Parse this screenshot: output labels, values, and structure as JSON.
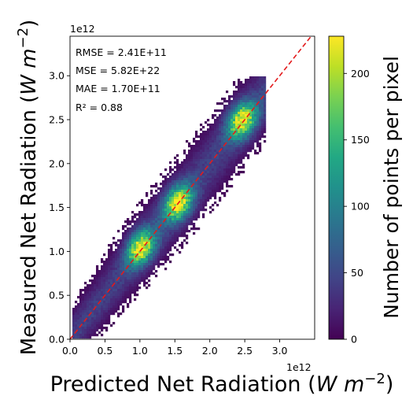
{
  "chart_data": {
    "type": "heatmap",
    "title": "",
    "xlabel": "Predicted Net Radiation",
    "ylabel": "Measured Net Radiation",
    "unit": "W m^-2",
    "x_offset_label": "1e12",
    "y_offset_label": "1e12",
    "xlim": [
      0.0,
      3.5
    ],
    "ylim": [
      0.0,
      3.45
    ],
    "x_ticks": [
      0.0,
      0.5,
      1.0,
      1.5,
      2.0,
      2.5,
      3.0
    ],
    "x_tick_labels": [
      "0.0",
      "0.5",
      "1.0",
      "1.5",
      "2.0",
      "2.5",
      "3.0"
    ],
    "y_ticks": [
      0.0,
      0.5,
      1.0,
      1.5,
      2.0,
      2.5,
      3.0
    ],
    "y_tick_labels": [
      "0.0",
      "0.5",
      "1.0",
      "1.5",
      "2.0",
      "2.5",
      "3.0"
    ],
    "identity_line": {
      "from": [
        0.0,
        0.0
      ],
      "to": [
        3.5,
        3.5
      ],
      "color": "#e31a1c",
      "style": "dashed"
    },
    "density_model": {
      "x_range": [
        0.02,
        2.8
      ],
      "y_range": [
        0.02,
        2.98
      ],
      "max_count": 225,
      "ridge_peaks": [
        {
          "x": 1.0,
          "y": 1.05
        },
        {
          "x": 1.55,
          "y": 1.55
        },
        {
          "x": 2.45,
          "y": 2.5
        }
      ]
    },
    "stats": [
      {
        "label": "RMSE = 2.41E+11"
      },
      {
        "label": "MSE = 5.82E+22"
      },
      {
        "label": "MAE = 1.70E+11"
      },
      {
        "label": "R² = 0.88"
      }
    ],
    "colorbar": {
      "label": "Number of points per pixel",
      "colormap": "viridis",
      "range": [
        0,
        228
      ],
      "ticks": [
        0,
        50,
        100,
        150,
        200
      ],
      "tick_labels": [
        "0",
        "50",
        "100",
        "150",
        "200"
      ]
    }
  }
}
